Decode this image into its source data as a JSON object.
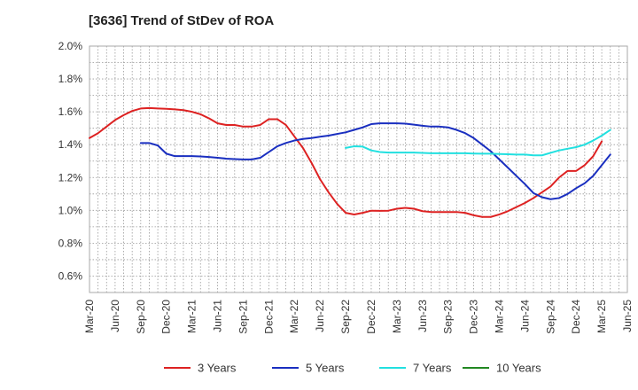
{
  "chart_data": {
    "type": "line",
    "title": "[3636]  Trend of StDev of ROA",
    "xlabel": "",
    "ylabel": "",
    "ylim": [
      0.5,
      2.0
    ],
    "y_ticks": [
      "2.0%",
      "1.8%",
      "1.6%",
      "1.4%",
      "1.2%",
      "1.0%",
      "0.8%",
      "0.6%"
    ],
    "y_tick_values": [
      2.0,
      1.8,
      1.6,
      1.4,
      1.2,
      1.0,
      0.8,
      0.6
    ],
    "x_ticks": [
      "Mar-20",
      "Jun-20",
      "Sep-20",
      "Dec-20",
      "Mar-21",
      "Jun-21",
      "Sep-21",
      "Dec-21",
      "Mar-22",
      "Jun-22",
      "Sep-22",
      "Dec-22",
      "Mar-23",
      "Jun-23",
      "Sep-23",
      "Dec-23",
      "Mar-24",
      "Jun-24",
      "Sep-24",
      "Dec-24",
      "Mar-25",
      "Jun-25"
    ],
    "grid": true,
    "legend_position": "bottom",
    "series": [
      {
        "name": "3 Years",
        "color": "#dd2222",
        "points": [
          [
            "Mar-20",
            1.44
          ],
          [
            "Apr-20",
            1.47
          ],
          [
            "May-20",
            1.51
          ],
          [
            "Jun-20",
            1.55
          ],
          [
            "Jul-20",
            1.58
          ],
          [
            "Aug-20",
            1.605
          ],
          [
            "Sep-20",
            1.62
          ],
          [
            "Oct-20",
            1.623
          ],
          [
            "Nov-20",
            1.62
          ],
          [
            "Dec-20",
            1.618
          ],
          [
            "Jan-21",
            1.615
          ],
          [
            "Feb-21",
            1.61
          ],
          [
            "Mar-21",
            1.6
          ],
          [
            "Apr-21",
            1.585
          ],
          [
            "May-21",
            1.56
          ],
          [
            "Jun-21",
            1.53
          ],
          [
            "Jul-21",
            1.52
          ],
          [
            "Aug-21",
            1.52
          ],
          [
            "Sep-21",
            1.51
          ],
          [
            "Oct-21",
            1.51
          ],
          [
            "Nov-21",
            1.52
          ],
          [
            "Dec-21",
            1.555
          ],
          [
            "Jan-22",
            1.555
          ],
          [
            "Feb-22",
            1.52
          ],
          [
            "Mar-22",
            1.45
          ],
          [
            "Apr-22",
            1.38
          ],
          [
            "May-22",
            1.29
          ],
          [
            "Jun-22",
            1.19
          ],
          [
            "Jul-22",
            1.11
          ],
          [
            "Aug-22",
            1.04
          ],
          [
            "Sep-22",
            0.985
          ],
          [
            "Oct-22",
            0.975
          ],
          [
            "Nov-22",
            0.985
          ],
          [
            "Dec-22",
            0.998
          ],
          [
            "Jan-23",
            0.997
          ],
          [
            "Feb-23",
            0.998
          ],
          [
            "Mar-23",
            1.01
          ],
          [
            "Apr-23",
            1.015
          ],
          [
            "May-23",
            1.01
          ],
          [
            "Jun-23",
            0.995
          ],
          [
            "Jul-23",
            0.99
          ],
          [
            "Aug-23",
            0.99
          ],
          [
            "Sep-23",
            0.99
          ],
          [
            "Oct-23",
            0.99
          ],
          [
            "Nov-23",
            0.985
          ],
          [
            "Dec-23",
            0.97
          ],
          [
            "Jan-24",
            0.96
          ],
          [
            "Feb-24",
            0.96
          ],
          [
            "Mar-24",
            0.975
          ],
          [
            "Apr-24",
            0.995
          ],
          [
            "May-24",
            1.02
          ],
          [
            "Jun-24",
            1.045
          ],
          [
            "Jul-24",
            1.075
          ],
          [
            "Aug-24",
            1.11
          ],
          [
            "Sep-24",
            1.145
          ],
          [
            "Oct-24",
            1.2
          ],
          [
            "Nov-24",
            1.24
          ],
          [
            "Dec-24",
            1.24
          ],
          [
            "Jan-25",
            1.275
          ],
          [
            "Feb-25",
            1.33
          ],
          [
            "Mar-25",
            1.42
          ]
        ]
      },
      {
        "name": "5 Years",
        "color": "#1a2fc0",
        "points": [
          [
            "Sep-20",
            1.41
          ],
          [
            "Oct-20",
            1.41
          ],
          [
            "Nov-20",
            1.395
          ],
          [
            "Dec-20",
            1.345
          ],
          [
            "Jan-21",
            1.33
          ],
          [
            "Feb-21",
            1.33
          ],
          [
            "Mar-21",
            1.33
          ],
          [
            "Apr-21",
            1.328
          ],
          [
            "May-21",
            1.325
          ],
          [
            "Jun-21",
            1.32
          ],
          [
            "Jul-21",
            1.315
          ],
          [
            "Aug-21",
            1.312
          ],
          [
            "Sep-21",
            1.31
          ],
          [
            "Oct-21",
            1.31
          ],
          [
            "Nov-21",
            1.32
          ],
          [
            "Dec-21",
            1.355
          ],
          [
            "Jan-22",
            1.39
          ],
          [
            "Feb-22",
            1.41
          ],
          [
            "Mar-22",
            1.425
          ],
          [
            "Apr-22",
            1.435
          ],
          [
            "May-22",
            1.44
          ],
          [
            "Jun-22",
            1.448
          ],
          [
            "Jul-22",
            1.455
          ],
          [
            "Aug-22",
            1.465
          ],
          [
            "Sep-22",
            1.475
          ],
          [
            "Oct-22",
            1.49
          ],
          [
            "Nov-22",
            1.505
          ],
          [
            "Dec-22",
            1.525
          ],
          [
            "Jan-23",
            1.53
          ],
          [
            "Feb-23",
            1.53
          ],
          [
            "Mar-23",
            1.53
          ],
          [
            "Apr-23",
            1.528
          ],
          [
            "May-23",
            1.522
          ],
          [
            "Jun-23",
            1.515
          ],
          [
            "Jul-23",
            1.51
          ],
          [
            "Aug-23",
            1.51
          ],
          [
            "Sep-23",
            1.505
          ],
          [
            "Oct-23",
            1.49
          ],
          [
            "Nov-23",
            1.47
          ],
          [
            "Dec-23",
            1.44
          ],
          [
            "Jan-24",
            1.4
          ],
          [
            "Feb-24",
            1.36
          ],
          [
            "Mar-24",
            1.31
          ],
          [
            "Apr-24",
            1.26
          ],
          [
            "May-24",
            1.21
          ],
          [
            "Jun-24",
            1.16
          ],
          [
            "Jul-24",
            1.105
          ],
          [
            "Aug-24",
            1.08
          ],
          [
            "Sep-24",
            1.068
          ],
          [
            "Oct-24",
            1.075
          ],
          [
            "Nov-24",
            1.1
          ],
          [
            "Dec-24",
            1.135
          ],
          [
            "Jan-25",
            1.165
          ],
          [
            "Feb-25",
            1.21
          ],
          [
            "Mar-25",
            1.275
          ],
          [
            "Apr-25",
            1.34
          ]
        ]
      },
      {
        "name": "7 Years",
        "color": "#22e0e0",
        "points": [
          [
            "Sep-22",
            1.38
          ],
          [
            "Oct-22",
            1.39
          ],
          [
            "Nov-22",
            1.388
          ],
          [
            "Dec-22",
            1.365
          ],
          [
            "Jan-23",
            1.355
          ],
          [
            "Feb-23",
            1.352
          ],
          [
            "Mar-23",
            1.352
          ],
          [
            "Apr-23",
            1.352
          ],
          [
            "May-23",
            1.352
          ],
          [
            "Jun-23",
            1.35
          ],
          [
            "Jul-23",
            1.348
          ],
          [
            "Aug-23",
            1.348
          ],
          [
            "Sep-23",
            1.348
          ],
          [
            "Oct-23",
            1.348
          ],
          [
            "Nov-23",
            1.348
          ],
          [
            "Dec-23",
            1.346
          ],
          [
            "Jan-24",
            1.345
          ],
          [
            "Feb-24",
            1.345
          ],
          [
            "Mar-24",
            1.343
          ],
          [
            "Apr-24",
            1.342
          ],
          [
            "May-24",
            1.34
          ],
          [
            "Jun-24",
            1.34
          ],
          [
            "Jul-24",
            1.335
          ],
          [
            "Aug-24",
            1.335
          ],
          [
            "Sep-24",
            1.35
          ],
          [
            "Oct-24",
            1.365
          ],
          [
            "Nov-24",
            1.375
          ],
          [
            "Dec-24",
            1.385
          ],
          [
            "Jan-25",
            1.4
          ],
          [
            "Feb-25",
            1.425
          ],
          [
            "Mar-25",
            1.455
          ],
          [
            "Apr-25",
            1.49
          ]
        ]
      },
      {
        "name": "10 Years",
        "color": "#228822",
        "points": []
      }
    ]
  }
}
